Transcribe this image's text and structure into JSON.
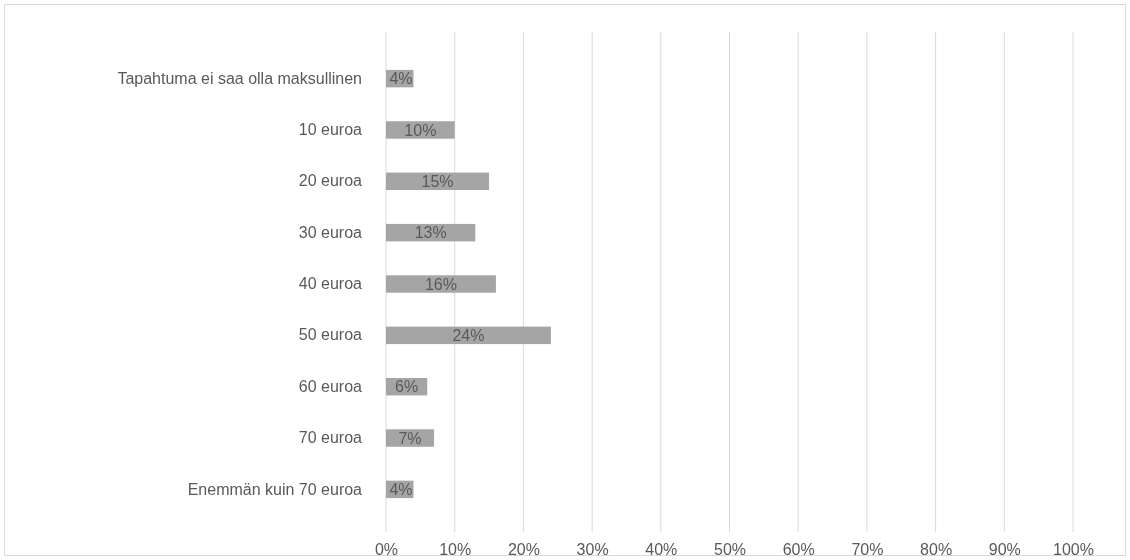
{
  "chart_data": {
    "type": "bar",
    "orientation": "horizontal",
    "categories": [
      "Tapahtuma ei saa olla maksullinen",
      "10 euroa",
      "20 euroa",
      "30 euroa",
      "40 euroa",
      "50 euroa",
      "60 euroa",
      "70 euroa",
      "Enemmän kuin 70 euroa"
    ],
    "values": [
      4,
      10,
      15,
      13,
      16,
      24,
      6,
      7,
      4
    ],
    "value_labels": [
      "4%",
      "10%",
      "15%",
      "13%",
      "16%",
      "24%",
      "6%",
      "7%",
      "4%"
    ],
    "color": "#a5a5a5",
    "xlim": [
      0,
      100
    ],
    "xticks": [
      {
        "value": 0,
        "label": "0%"
      },
      {
        "value": 10,
        "label": "10%"
      },
      {
        "value": 20,
        "label": "20%"
      },
      {
        "value": 30,
        "label": "30%"
      },
      {
        "value": 40,
        "label": "40%"
      },
      {
        "value": 50,
        "label": "50%"
      },
      {
        "value": 60,
        "label": "60%"
      },
      {
        "value": 70,
        "label": "70%"
      },
      {
        "value": 80,
        "label": "80%"
      },
      {
        "value": 90,
        "label": "90%"
      },
      {
        "value": 100,
        "label": "100%"
      }
    ],
    "grid": "x"
  }
}
